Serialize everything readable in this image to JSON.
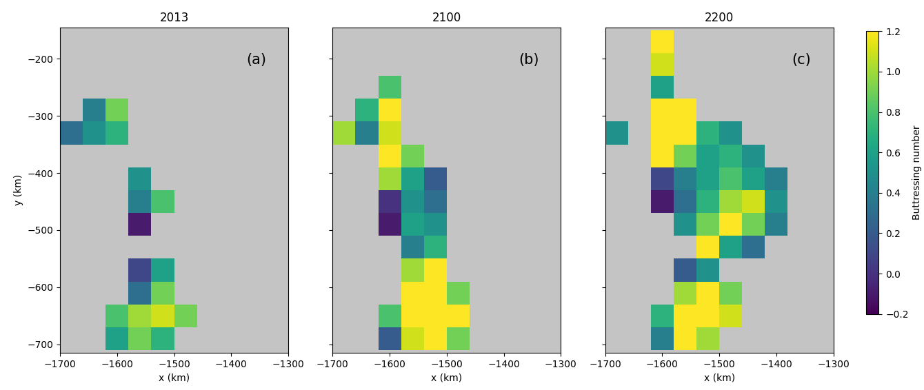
{
  "chart_data": [
    {
      "type": "heatmap",
      "title": "2013",
      "annotation": "(a)",
      "xlabel": "x (km)",
      "ylabel": "y (km)",
      "xlim": [
        -1700,
        -1300
      ],
      "ylim": [
        -715,
        -145
      ],
      "xticks": [
        {
          "value": -1700,
          "label": "−1700"
        },
        {
          "value": -1600,
          "label": "−1600"
        },
        {
          "value": -1500,
          "label": "−1500"
        },
        {
          "value": -1400,
          "label": "−1400"
        },
        {
          "value": -1300,
          "label": "−1300"
        }
      ],
      "yticks": [
        {
          "value": -700,
          "label": "−700"
        },
        {
          "value": -600,
          "label": "−600"
        },
        {
          "value": -500,
          "label": "−500"
        },
        {
          "value": -400,
          "label": "−400"
        },
        {
          "value": -300,
          "label": "−300"
        },
        {
          "value": -200,
          "label": "−200"
        }
      ],
      "x_edges": [
        -1700,
        -1660,
        -1620,
        -1580,
        -1540,
        -1500,
        -1460,
        -1420,
        -1380,
        -1340,
        -1300
      ],
      "y_edges": [
        -710,
        -670,
        -630,
        -590,
        -550,
        -510,
        -470,
        -430,
        -390,
        -350,
        -310,
        -270,
        -230,
        -190,
        -150
      ],
      "cells": [
        [
          null,
          null,
          0.6,
          0.9,
          0.7,
          null,
          null,
          null,
          null,
          null
        ],
        [
          null,
          null,
          0.8,
          1.0,
          1.1,
          0.9,
          null,
          null,
          null,
          null
        ],
        [
          null,
          null,
          null,
          0.3,
          0.9,
          null,
          null,
          null,
          null,
          null
        ],
        [
          null,
          null,
          null,
          0.1,
          0.6,
          null,
          null,
          null,
          null,
          null
        ],
        [
          null,
          null,
          null,
          null,
          null,
          null,
          null,
          null,
          null,
          null
        ],
        [
          null,
          null,
          null,
          -0.1,
          null,
          null,
          null,
          null,
          null,
          null
        ],
        [
          null,
          null,
          null,
          0.4,
          0.8,
          null,
          null,
          null,
          null,
          null
        ],
        [
          null,
          null,
          null,
          0.5,
          null,
          null,
          null,
          null,
          null,
          null
        ],
        [
          null,
          null,
          null,
          null,
          null,
          null,
          null,
          null,
          null,
          null
        ],
        [
          0.3,
          0.5,
          0.7,
          null,
          null,
          null,
          null,
          null,
          null,
          null
        ],
        [
          null,
          0.4,
          0.9,
          null,
          null,
          null,
          null,
          null,
          null,
          null
        ],
        [
          null,
          null,
          null,
          null,
          null,
          null,
          null,
          null,
          null,
          null
        ],
        [
          null,
          null,
          null,
          null,
          null,
          null,
          null,
          null,
          null,
          null
        ],
        [
          null,
          null,
          null,
          null,
          null,
          null,
          null,
          null,
          null,
          null
        ]
      ]
    },
    {
      "type": "heatmap",
      "title": "2100",
      "annotation": "(b)",
      "xlabel": "x (km)",
      "tick_labels": "x",
      "xlim": [
        -1700,
        -1300
      ],
      "ylim": [
        -715,
        -145
      ],
      "xticks": [
        {
          "value": -1700,
          "label": "−1700"
        },
        {
          "value": -1600,
          "label": "−1600"
        },
        {
          "value": -1500,
          "label": "−1500"
        },
        {
          "value": -1400,
          "label": "−1400"
        },
        {
          "value": -1300,
          "label": "−1300"
        }
      ],
      "yticks": [
        -700,
        -600,
        -500,
        -400,
        -300,
        -200
      ],
      "x_edges": [
        -1700,
        -1660,
        -1620,
        -1580,
        -1540,
        -1500,
        -1460,
        -1420,
        -1380,
        -1340,
        -1300
      ],
      "y_edges": [
        -710,
        -670,
        -630,
        -590,
        -550,
        -510,
        -470,
        -430,
        -390,
        -350,
        -310,
        -270,
        -230,
        -190,
        -150
      ],
      "cells": [
        [
          null,
          null,
          0.2,
          1.1,
          1.2,
          0.9,
          null,
          null,
          null,
          null
        ],
        [
          null,
          null,
          0.8,
          1.2,
          1.2,
          1.2,
          null,
          null,
          null,
          null
        ],
        [
          null,
          null,
          null,
          1.2,
          1.2,
          0.9,
          null,
          null,
          null,
          null
        ],
        [
          null,
          null,
          null,
          1.0,
          1.2,
          null,
          null,
          null,
          null,
          null
        ],
        [
          null,
          null,
          null,
          0.4,
          0.7,
          null,
          null,
          null,
          null,
          null
        ],
        [
          null,
          null,
          -0.1,
          0.6,
          0.5,
          null,
          null,
          null,
          null,
          null
        ],
        [
          null,
          null,
          0.0,
          0.5,
          0.3,
          null,
          null,
          null,
          null,
          null
        ],
        [
          null,
          null,
          1.0,
          0.6,
          0.2,
          null,
          null,
          null,
          null,
          null
        ],
        [
          null,
          null,
          1.2,
          0.9,
          null,
          null,
          null,
          null,
          null,
          null
        ],
        [
          1.0,
          0.4,
          1.1,
          null,
          null,
          null,
          null,
          null,
          null,
          null
        ],
        [
          null,
          0.7,
          1.2,
          null,
          null,
          null,
          null,
          null,
          null,
          null
        ],
        [
          null,
          null,
          0.8,
          null,
          null,
          null,
          null,
          null,
          null,
          null
        ],
        [
          null,
          null,
          null,
          null,
          null,
          null,
          null,
          null,
          null,
          null
        ],
        [
          null,
          null,
          null,
          null,
          null,
          null,
          null,
          null,
          null,
          null
        ]
      ]
    },
    {
      "type": "heatmap",
      "title": "2200",
      "annotation": "(c)",
      "xlabel": "x (km)",
      "tick_labels": "x",
      "xlim": [
        -1700,
        -1300
      ],
      "ylim": [
        -715,
        -145
      ],
      "xticks": [
        {
          "value": -1700,
          "label": "−1700"
        },
        {
          "value": -1600,
          "label": "−1600"
        },
        {
          "value": -1500,
          "label": "−1500"
        },
        {
          "value": -1400,
          "label": "−1400"
        },
        {
          "value": -1300,
          "label": "−1300"
        }
      ],
      "yticks": [
        -700,
        -600,
        -500,
        -400,
        -300,
        -200
      ],
      "x_edges": [
        -1700,
        -1660,
        -1620,
        -1580,
        -1540,
        -1500,
        -1460,
        -1420,
        -1380,
        -1340,
        -1300
      ],
      "y_edges": [
        -710,
        -670,
        -630,
        -590,
        -550,
        -510,
        -470,
        -430,
        -390,
        -350,
        -310,
        -270,
        -230,
        -190,
        -150
      ],
      "cells": [
        [
          null,
          null,
          0.4,
          1.2,
          1.0,
          null,
          null,
          null,
          null,
          null
        ],
        [
          null,
          null,
          0.7,
          1.2,
          1.2,
          1.1,
          null,
          null,
          null,
          null
        ],
        [
          null,
          null,
          null,
          1.0,
          1.2,
          0.9,
          null,
          null,
          null,
          null
        ],
        [
          null,
          null,
          null,
          0.2,
          0.5,
          null,
          null,
          null,
          null,
          null
        ],
        [
          null,
          null,
          null,
          null,
          1.2,
          0.6,
          0.3,
          null,
          null,
          null
        ],
        [
          null,
          null,
          null,
          0.5,
          0.9,
          1.2,
          0.9,
          0.4,
          null,
          null
        ],
        [
          null,
          null,
          -0.1,
          0.3,
          0.7,
          1.0,
          1.1,
          0.5,
          null,
          null
        ],
        [
          null,
          null,
          0.1,
          0.4,
          0.6,
          0.8,
          0.6,
          0.4,
          null,
          null
        ],
        [
          null,
          null,
          1.2,
          0.9,
          0.6,
          0.7,
          0.5,
          null,
          null,
          null
        ],
        [
          0.5,
          null,
          1.2,
          1.2,
          0.7,
          0.5,
          null,
          null,
          null,
          null
        ],
        [
          null,
          null,
          1.2,
          1.2,
          null,
          null,
          null,
          null,
          null,
          null
        ],
        [
          null,
          null,
          0.6,
          null,
          null,
          null,
          null,
          null,
          null,
          null
        ],
        [
          null,
          null,
          1.1,
          null,
          null,
          null,
          null,
          null,
          null,
          null
        ],
        [
          null,
          null,
          1.2,
          null,
          null,
          null,
          null,
          null,
          null,
          null
        ]
      ],
      "colorbar": {
        "label": "Buttressing number",
        "range": [
          -0.2,
          1.2
        ],
        "ticks": [
          {
            "value": -0.2,
            "label": "−0.2"
          },
          {
            "value": 0,
            "label": "0.0"
          },
          0.2,
          0.4,
          0.6,
          0.8,
          1.0,
          1.2
        ]
      }
    }
  ]
}
